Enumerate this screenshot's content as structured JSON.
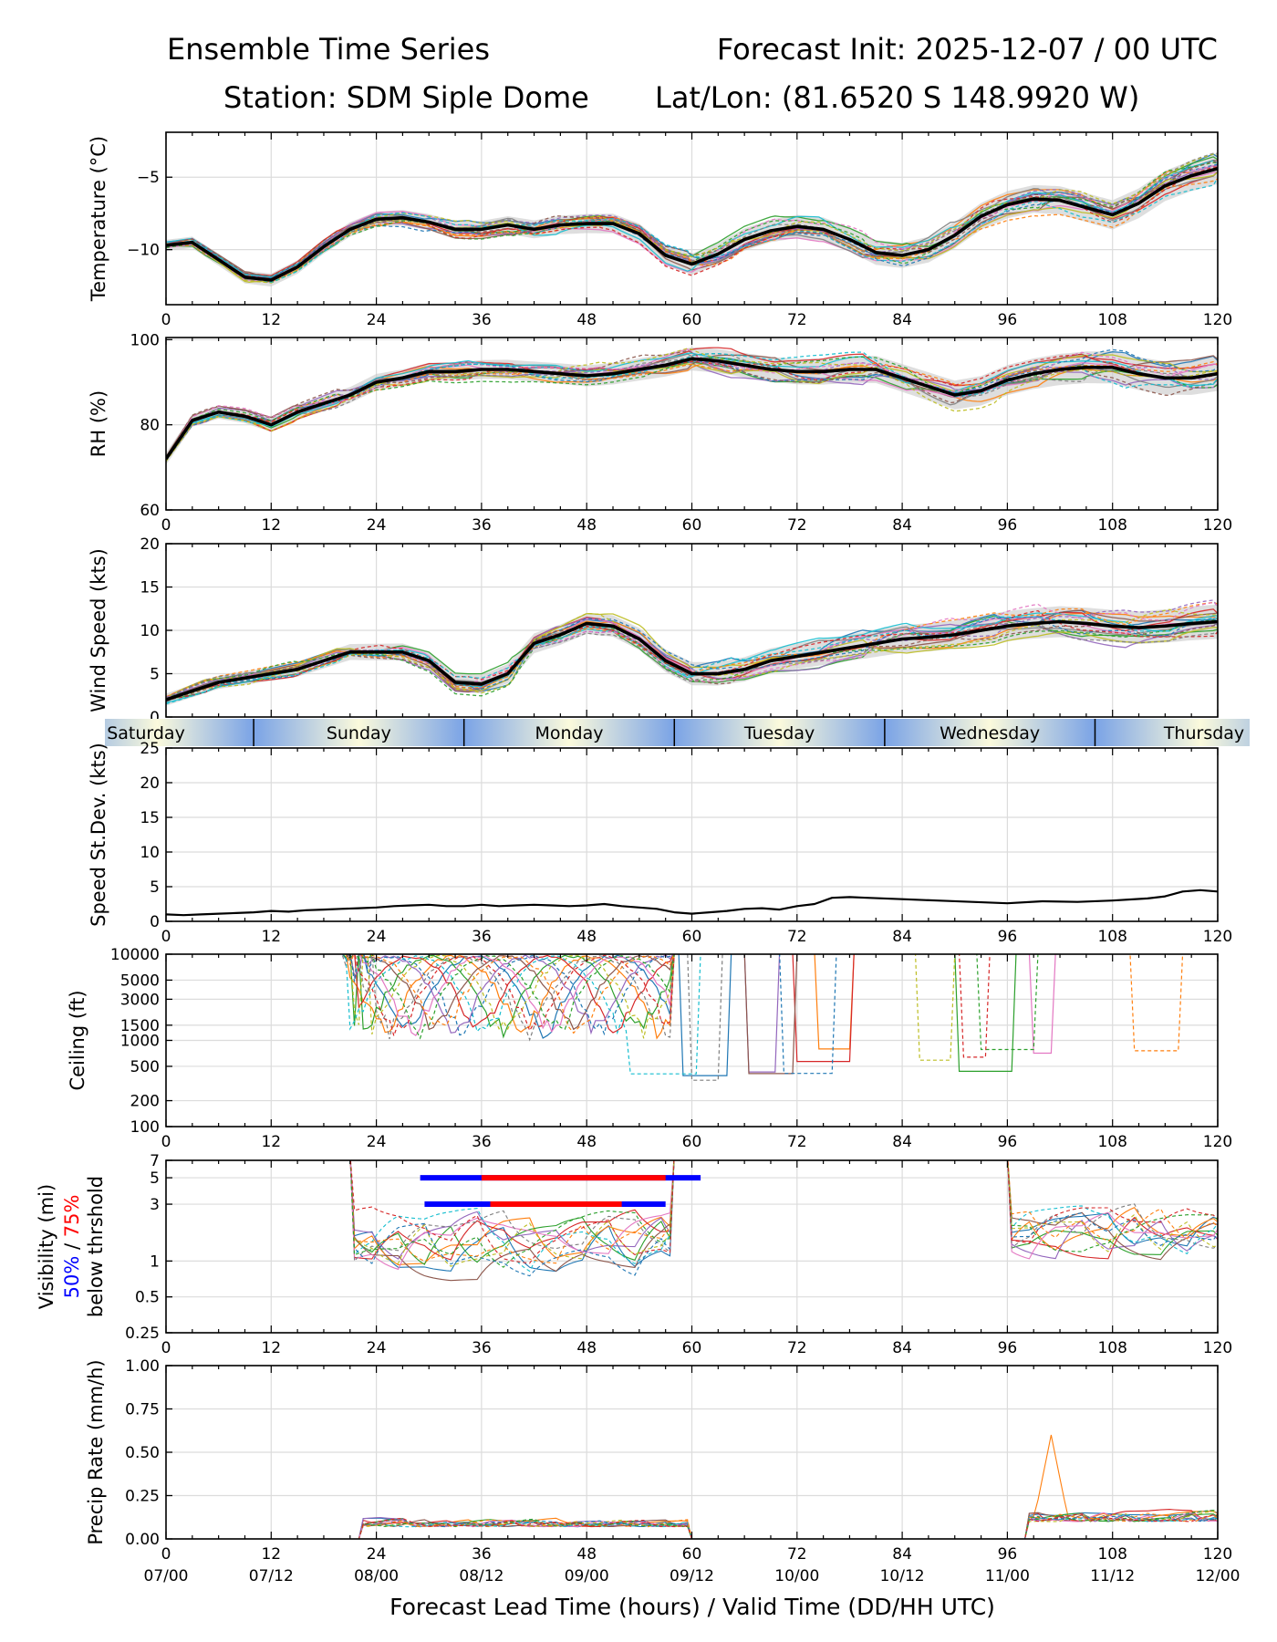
{
  "header": {
    "left_title": "Ensemble Time Series",
    "right_title": "Forecast Init: 2025-12-07 / 00 UTC",
    "station": "Station: SDM  Siple Dome",
    "latlon": "Lat/Lon: (81.6520 S 148.9920 W)"
  },
  "x_axis": {
    "label": "Forecast Lead Time (hours) / Valid Time (DD/HH UTC)",
    "lead_ticks": [
      "0",
      "12",
      "24",
      "36",
      "48",
      "60",
      "72",
      "84",
      "96",
      "108",
      "120"
    ],
    "valid_ticks": [
      "07/00",
      "07/12",
      "08/00",
      "08/12",
      "09/00",
      "09/12",
      "10/00",
      "10/12",
      "11/00",
      "11/12",
      "12/00"
    ],
    "range": [
      0,
      120
    ]
  },
  "day_bar": {
    "days": [
      {
        "label": "Saturday",
        "start_hour": -12,
        "end_hour": 10
      },
      {
        "label": "Sunday",
        "start_hour": 10,
        "end_hour": 34
      },
      {
        "label": "Monday",
        "start_hour": 34,
        "end_hour": 58
      },
      {
        "label": "Tuesday",
        "start_hour": 58,
        "end_hour": 82
      },
      {
        "label": "Wednesday",
        "start_hour": 82,
        "end_hour": 106
      },
      {
        "label": "Thursday",
        "start_hour": 106,
        "end_hour": 130
      }
    ]
  },
  "member_colors": [
    "#1f77b4",
    "#ff7f0e",
    "#2ca02c",
    "#d62728",
    "#9467bd",
    "#8c564b",
    "#e377c2",
    "#7f7f7f",
    "#bcbd22",
    "#17becf"
  ],
  "chart_data": [
    {
      "id": "temperature",
      "type": "line",
      "ylabel": "Temperature (°C)",
      "ylim": [
        -13.8,
        -1.9
      ],
      "yticks": [
        {
          "v": -5,
          "label": "−5"
        },
        {
          "v": -10,
          "label": "−10"
        }
      ],
      "series": [
        {
          "name": "ensemble mean",
          "x": [
            0,
            3,
            6,
            9,
            12,
            15,
            18,
            21,
            24,
            27,
            30,
            33,
            36,
            39,
            42,
            45,
            48,
            51,
            54,
            57,
            60,
            63,
            66,
            69,
            72,
            75,
            78,
            81,
            84,
            87,
            90,
            93,
            96,
            99,
            102,
            105,
            108,
            111,
            114,
            117,
            120
          ],
          "values": [
            -9.7,
            -9.5,
            -10.7,
            -11.9,
            -12.1,
            -11.2,
            -9.8,
            -8.6,
            -7.9,
            -7.8,
            -8.1,
            -8.6,
            -8.6,
            -8.3,
            -8.6,
            -8.3,
            -8.2,
            -8.2,
            -8.9,
            -10.4,
            -11.0,
            -10.3,
            -9.3,
            -8.7,
            -8.4,
            -8.6,
            -9.3,
            -10.2,
            -10.4,
            -10.0,
            -9.0,
            -7.7,
            -6.9,
            -6.5,
            -6.6,
            -7.1,
            -7.6,
            -6.8,
            -5.6,
            -4.9,
            -4.4
          ]
        }
      ]
    },
    {
      "id": "rh",
      "type": "line",
      "ylabel": "RH (%)",
      "ylim": [
        60,
        100.5
      ],
      "yticks": [
        {
          "v": 100,
          "label": "100"
        },
        {
          "v": 80,
          "label": "80"
        },
        {
          "v": 60,
          "label": "60"
        }
      ],
      "series": [
        {
          "name": "ensemble mean",
          "x": [
            0,
            3,
            6,
            9,
            12,
            15,
            18,
            21,
            24,
            27,
            30,
            33,
            36,
            39,
            42,
            45,
            48,
            51,
            54,
            57,
            60,
            63,
            66,
            69,
            72,
            75,
            78,
            81,
            84,
            87,
            90,
            93,
            96,
            99,
            102,
            105,
            108,
            111,
            114,
            117,
            120
          ],
          "values": [
            72,
            81,
            83,
            82,
            80,
            83,
            85,
            87,
            90,
            91,
            92.5,
            92.5,
            93,
            93,
            92.5,
            92,
            91.5,
            92,
            93,
            94,
            95.5,
            95,
            94,
            93,
            92.5,
            92.5,
            93,
            93,
            91,
            89,
            87,
            88,
            90.5,
            92,
            93,
            93.5,
            93.5,
            92,
            91,
            91,
            92
          ]
        }
      ]
    },
    {
      "id": "wind_speed",
      "type": "line",
      "ylabel": "Wind Speed (kts)",
      "ylim": [
        0,
        20
      ],
      "yticks": [
        {
          "v": 20,
          "label": "20"
        },
        {
          "v": 15,
          "label": "15"
        },
        {
          "v": 10,
          "label": "10"
        },
        {
          "v": 5,
          "label": "5"
        },
        {
          "v": 0,
          "label": "0"
        }
      ],
      "series": [
        {
          "name": "ensemble mean",
          "x": [
            0,
            3,
            6,
            9,
            12,
            15,
            18,
            21,
            24,
            27,
            30,
            33,
            36,
            39,
            42,
            45,
            48,
            51,
            54,
            57,
            60,
            63,
            66,
            69,
            72,
            75,
            78,
            81,
            84,
            87,
            90,
            93,
            96,
            99,
            102,
            105,
            108,
            111,
            114,
            117,
            120
          ],
          "values": [
            2,
            3,
            4,
            4.5,
            5,
            5.5,
            6.5,
            7.5,
            7.5,
            7.5,
            6.5,
            4,
            3.8,
            5,
            8.5,
            9.5,
            10.8,
            10.5,
            9,
            6.5,
            5,
            5,
            5.5,
            6.5,
            7,
            7.5,
            8,
            8.5,
            9,
            9.2,
            9.5,
            10,
            10.5,
            10.8,
            11,
            10.8,
            10.5,
            10.3,
            10.5,
            10.8,
            11
          ]
        }
      ]
    },
    {
      "id": "speed_stdev",
      "type": "line",
      "ylabel": "Speed St.Dev. (kts)",
      "ylim": [
        0,
        25
      ],
      "yticks": [
        {
          "v": 25,
          "label": "25"
        },
        {
          "v": 20,
          "label": "20"
        },
        {
          "v": 15,
          "label": "15"
        },
        {
          "v": 10,
          "label": "10"
        },
        {
          "v": 5,
          "label": "5"
        },
        {
          "v": 0,
          "label": "0"
        }
      ],
      "series": [
        {
          "name": "speed standard deviation",
          "x": [
            0,
            2,
            4,
            6,
            8,
            10,
            12,
            14,
            16,
            18,
            20,
            22,
            24,
            26,
            28,
            30,
            32,
            34,
            36,
            38,
            40,
            42,
            44,
            46,
            48,
            50,
            52,
            54,
            56,
            58,
            60,
            62,
            64,
            66,
            68,
            70,
            72,
            74,
            76,
            78,
            80,
            84,
            88,
            92,
            96,
            100,
            104,
            108,
            112,
            114,
            116,
            118,
            120
          ],
          "values": [
            1.0,
            0.9,
            1.0,
            1.1,
            1.2,
            1.3,
            1.5,
            1.4,
            1.6,
            1.7,
            1.8,
            1.9,
            2.0,
            2.2,
            2.3,
            2.4,
            2.2,
            2.2,
            2.4,
            2.2,
            2.3,
            2.4,
            2.3,
            2.2,
            2.3,
            2.5,
            2.2,
            2.0,
            1.8,
            1.3,
            1.1,
            1.3,
            1.5,
            1.8,
            1.9,
            1.7,
            2.2,
            2.5,
            3.4,
            3.5,
            3.4,
            3.2,
            3.0,
            2.8,
            2.6,
            2.9,
            2.8,
            3.0,
            3.3,
            3.6,
            4.3,
            4.5,
            4.3
          ]
        }
      ]
    },
    {
      "id": "ceiling",
      "type": "line",
      "ylabel": "Ceiling (ft)",
      "yscale": "log",
      "ylim": [
        100,
        10000
      ],
      "yticks": [
        {
          "v": 10000,
          "label": "10000"
        },
        {
          "v": 5000,
          "label": "5000"
        },
        {
          "v": 3000,
          "label": "3000"
        },
        {
          "v": 1500,
          "label": "1500"
        },
        {
          "v": 1000,
          "label": "1000"
        },
        {
          "v": 500,
          "label": "500"
        },
        {
          "v": 200,
          "label": "200"
        },
        {
          "v": 100,
          "label": "100"
        }
      ],
      "series": []
    },
    {
      "id": "visibility",
      "type": "line",
      "ylabel": "Visibility (mi)",
      "ylabel_50": "50%",
      "ylabel_sep": " / ",
      "ylabel_75": "75%",
      "ylabel_2": "below thrshold",
      "yscale": "log",
      "ylim": [
        0.25,
        7
      ],
      "yticks": [
        {
          "v": 7,
          "label": "7"
        },
        {
          "v": 5,
          "label": "5"
        },
        {
          "v": 3,
          "label": "3"
        },
        {
          "v": 1,
          "label": "1"
        },
        {
          "v": 0.5,
          "label": "0.5"
        },
        {
          "v": 0.25,
          "label": "0.25"
        }
      ],
      "threshold_bars": [
        {
          "threshold": 5,
          "pct": 50,
          "color": "#0000ff",
          "x_start": 29,
          "x_end": 61
        },
        {
          "threshold": 5,
          "pct": 75,
          "color": "#ff0000",
          "x_start": 36,
          "x_end": 57
        },
        {
          "threshold": 3,
          "pct": 50,
          "color": "#0000ff",
          "x_start": 29.5,
          "x_end": 57
        },
        {
          "threshold": 3,
          "pct": 75,
          "color": "#ff0000",
          "x_start": 37,
          "x_end": 52
        }
      ],
      "series": []
    },
    {
      "id": "precip",
      "type": "line",
      "ylabel": "Precip Rate (mm/h)",
      "ylim": [
        0,
        1
      ],
      "yticks": [
        {
          "v": 1,
          "label": "1.00"
        },
        {
          "v": 0.75,
          "label": "0.75"
        },
        {
          "v": 0.5,
          "label": "0.50"
        },
        {
          "v": 0.25,
          "label": "0.25"
        },
        {
          "v": 0,
          "label": "0.00"
        }
      ],
      "series": []
    }
  ]
}
